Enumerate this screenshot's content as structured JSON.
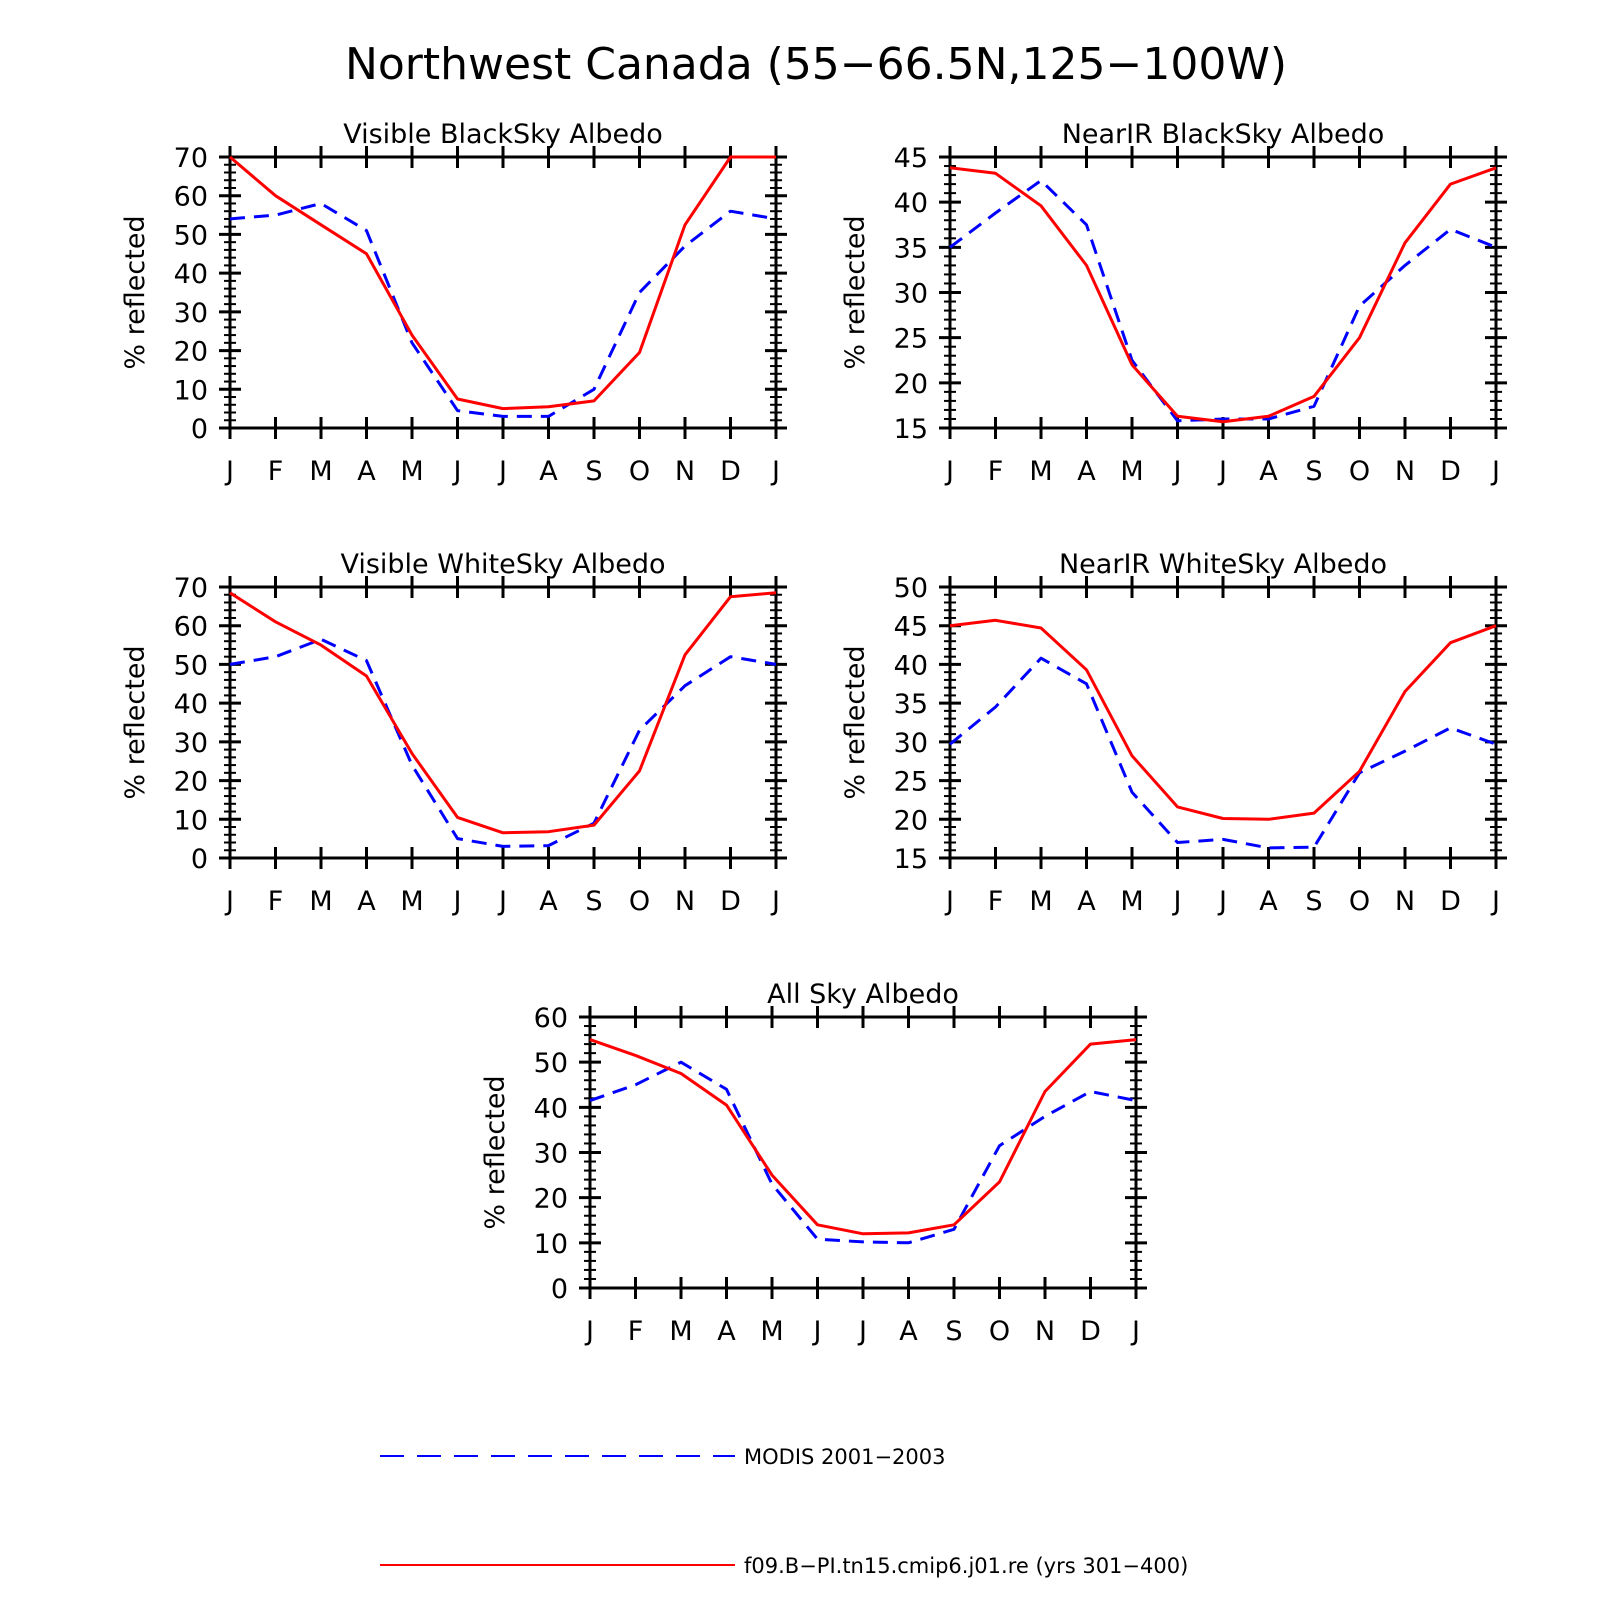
{
  "figure": {
    "title": "Northwest Canada (55−66.5N,125−100W)"
  },
  "colors": {
    "obs": "#0000ff",
    "model": "#ff0000",
    "axis": "#000000"
  },
  "legend": {
    "placement": "bottom",
    "obs_label": "MODIS 2001−2003",
    "model_label": "f09.B−PI.tn15.cmip6.j01.re (yrs 301−400)"
  },
  "chart_data": [
    {
      "type": "line",
      "title": "Visible BlackSky Albedo",
      "ylabel": "% reflected",
      "ylim": [
        0,
        70
      ],
      "yticks": [
        0,
        10,
        20,
        30,
        40,
        50,
        60,
        70
      ],
      "categories": [
        "J",
        "F",
        "M",
        "A",
        "M",
        "J",
        "J",
        "A",
        "S",
        "O",
        "N",
        "D",
        "J"
      ],
      "series": [
        {
          "name": "MODIS 2001−2003",
          "style": "dashed",
          "values": [
            54,
            55,
            58,
            51,
            22,
            4.5,
            3,
            3,
            10,
            35,
            47,
            56,
            54
          ]
        },
        {
          "name": "f09.B−PI.tn15.cmip6.j01.re (yrs 301−400)",
          "style": "solid",
          "values": [
            70,
            60,
            52.5,
            45,
            24,
            7.5,
            5,
            5.5,
            7,
            19.5,
            52.5,
            70,
            70
          ]
        }
      ]
    },
    {
      "type": "line",
      "title": "NearIR BlackSky Albedo",
      "ylabel": "% reflected",
      "ylim": [
        15,
        45
      ],
      "yticks": [
        15,
        20,
        25,
        30,
        35,
        40,
        45
      ],
      "categories": [
        "J",
        "F",
        "M",
        "A",
        "M",
        "J",
        "J",
        "A",
        "S",
        "O",
        "N",
        "D",
        "J"
      ],
      "series": [
        {
          "name": "MODIS 2001−2003",
          "style": "dashed",
          "values": [
            35,
            38.8,
            42.4,
            37.5,
            22.5,
            15.8,
            16,
            16,
            17.4,
            28.5,
            33,
            37,
            35
          ]
        },
        {
          "name": "f09.B−PI.tn15.cmip6.j01.re (yrs 301−400)",
          "style": "solid",
          "values": [
            43.8,
            43.2,
            39.6,
            33,
            22,
            16.3,
            15.7,
            16.3,
            18.5,
            25,
            35.5,
            42,
            43.8
          ]
        }
      ]
    },
    {
      "type": "line",
      "title": "Visible WhiteSky Albedo",
      "ylabel": "% reflected",
      "ylim": [
        0,
        70
      ],
      "yticks": [
        0,
        10,
        20,
        30,
        40,
        50,
        60,
        70
      ],
      "categories": [
        "J",
        "F",
        "M",
        "A",
        "M",
        "J",
        "J",
        "A",
        "S",
        "O",
        "N",
        "D",
        "J"
      ],
      "series": [
        {
          "name": "MODIS 2001−2003",
          "style": "dashed",
          "values": [
            50,
            52,
            56.5,
            51,
            24,
            5,
            3,
            3.2,
            9,
            33,
            44.5,
            52,
            50
          ]
        },
        {
          "name": "f09.B−PI.tn15.cmip6.j01.re (yrs 301−400)",
          "style": "solid",
          "values": [
            68.5,
            61,
            55,
            47,
            27,
            10.5,
            6.5,
            6.8,
            8.5,
            22.5,
            52.5,
            67.5,
            68.5
          ]
        }
      ]
    },
    {
      "type": "line",
      "title": "NearIR WhiteSky Albedo",
      "ylabel": "% reflected",
      "ylim": [
        15,
        50
      ],
      "yticks": [
        15,
        20,
        25,
        30,
        35,
        40,
        45,
        50
      ],
      "categories": [
        "J",
        "F",
        "M",
        "A",
        "M",
        "J",
        "J",
        "A",
        "S",
        "O",
        "N",
        "D",
        "J"
      ],
      "series": [
        {
          "name": "MODIS 2001−2003",
          "style": "dashed",
          "values": [
            29.7,
            34.5,
            40.8,
            37.5,
            23.5,
            17,
            17.4,
            16.3,
            16.4,
            26,
            28.8,
            31.8,
            29.7
          ]
        },
        {
          "name": "f09.B−PI.tn15.cmip6.j01.re (yrs 301−400)",
          "style": "solid",
          "values": [
            45,
            45.7,
            44.7,
            39.3,
            28.2,
            21.6,
            20.1,
            20,
            20.8,
            26.2,
            36.5,
            42.8,
            45
          ]
        }
      ]
    },
    {
      "type": "line",
      "title": "All Sky Albedo",
      "ylabel": "% reflected",
      "ylim": [
        0,
        60
      ],
      "yticks": [
        0,
        10,
        20,
        30,
        40,
        50,
        60
      ],
      "categories": [
        "J",
        "F",
        "M",
        "A",
        "M",
        "J",
        "J",
        "A",
        "S",
        "O",
        "N",
        "D",
        "J"
      ],
      "series": [
        {
          "name": "MODIS 2001−2003",
          "style": "dashed",
          "values": [
            41.5,
            45,
            50,
            44,
            23,
            10.8,
            10.2,
            10,
            13,
            31.5,
            38,
            43.5,
            41.5
          ]
        },
        {
          "name": "f09.B−PI.tn15.cmip6.j01.re (yrs 301−400)",
          "style": "solid",
          "values": [
            55,
            51.5,
            47.5,
            40.5,
            25,
            14,
            12,
            12.2,
            14,
            23.5,
            43.5,
            54,
            55
          ]
        }
      ]
    }
  ]
}
